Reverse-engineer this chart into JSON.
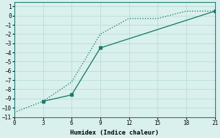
{
  "line1_x": [
    0,
    3,
    6,
    9,
    12,
    15,
    18,
    21
  ],
  "line1_y": [
    -10.5,
    -9.3,
    -7.2,
    -2.0,
    -0.3,
    -0.3,
    0.5,
    0.5
  ],
  "line2_x": [
    3,
    6,
    9,
    21
  ],
  "line2_y": [
    -9.3,
    -8.6,
    -3.5,
    0.5
  ],
  "line_color": "#1a7a6e",
  "bg_color": "#d9f0ed",
  "grid_color": "#b8dcd6",
  "xlabel": "Humidex (Indice chaleur)",
  "xlim": [
    0,
    21
  ],
  "ylim": [
    -11,
    1.5
  ],
  "xticks": [
    0,
    3,
    6,
    9,
    12,
    15,
    18,
    21
  ],
  "yticks": [
    1,
    0,
    -1,
    -2,
    -3,
    -4,
    -5,
    -6,
    -7,
    -8,
    -9,
    -10,
    -11
  ]
}
